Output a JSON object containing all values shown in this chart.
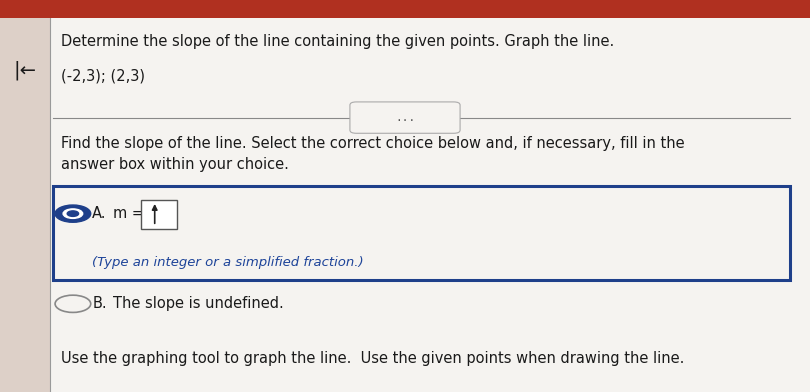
{
  "title_line1": "Determine the slope of the line containing the given points. Graph the line.",
  "title_line2": "(-2,3); (2,3)",
  "divider_text": "•••",
  "instruction_line1": "Find the slope of the line. Select the correct choice below and, if necessary, fill in the",
  "instruction_line2": "answer box within your choice.",
  "option_a_label": "A.",
  "option_a_text": "m =",
  "option_a_subtext": "(Type an integer or a simplified fraction.)",
  "option_b_label": "B.",
  "option_b_text": "The slope is undefined.",
  "footer": "Use the graphing tool to graph the line.  Use the given points when drawing the line.",
  "bg_color": "#e8e4de",
  "sidebar_color": "#ddd0c8",
  "white_bg": "#f5f3f0",
  "selected_box_color": "#1e3f8a",
  "top_bar_color": "#b03020",
  "text_color": "#1a1a1a",
  "blue_text_color": "#1e4499",
  "divider_color": "#888888",
  "border_vert_color": "#999999",
  "radio_selected_color": "#1e3f8a",
  "radio_unselected_color": "#aaaaaa",
  "cursor_color": "#222222",
  "figwidth": 8.1,
  "figheight": 3.92,
  "dpi": 100
}
